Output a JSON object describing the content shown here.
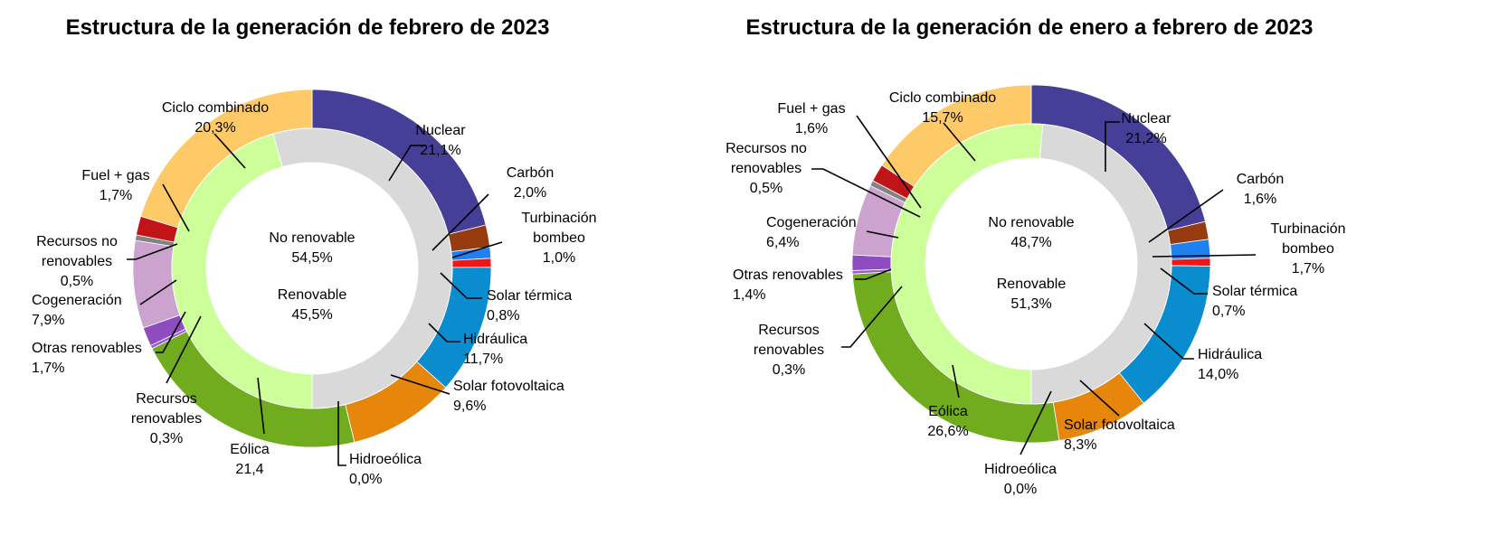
{
  "colors": {
    "nuclear": "#463F98",
    "carbon": "#963A0F",
    "turbinacion": "#1F81F0",
    "solar_termica": "#F01616",
    "hidraulica": "#0A8DCF",
    "solar_fotovoltaica": "#E6870B",
    "hidroeolica": "#5B8A1E",
    "eolica": "#70AC1D",
    "recursos_renovables": "#9C5CC9",
    "otras_renovables": "#8E4CC0",
    "cogeneracion": "#CCA2CE",
    "recursos_no_renovables": "#828282",
    "fuel_gas": "#C11419",
    "ciclo_combinado": "#FECA67",
    "no_renovable": "#D9D9D9",
    "renovable": "#CCFF99"
  },
  "chart_data": [
    {
      "type": "pie",
      "subtype": "donut",
      "title": "Estructura de la generación de febrero de 2023",
      "outer_series": [
        {
          "key": "nuclear",
          "name": "Nuclear",
          "value": 21.1,
          "label": "21,1%"
        },
        {
          "key": "carbon",
          "name": "Carbón",
          "value": 2.0,
          "label": "2,0%"
        },
        {
          "key": "turbinacion",
          "name": "Turbinación bombeo",
          "value": 1.0,
          "label": "1,0%"
        },
        {
          "key": "solar_termica",
          "name": "Solar térmica",
          "value": 0.8,
          "label": "0,8%"
        },
        {
          "key": "hidraulica",
          "name": "Hidráulica",
          "value": 11.7,
          "label": "11,7%"
        },
        {
          "key": "solar_fotovoltaica",
          "name": "Solar fotovoltaica",
          "value": 9.6,
          "label": "9,6%"
        },
        {
          "key": "hidroeolica",
          "name": "Hidroeólica",
          "value": 0.0,
          "label": "0,0%"
        },
        {
          "key": "eolica",
          "name": "Eólica",
          "value": 21.4,
          "label": "21,4"
        },
        {
          "key": "recursos_renovables",
          "name": "Recursos renovables",
          "value": 0.3,
          "label": "0,3%"
        },
        {
          "key": "otras_renovables",
          "name": "Otras renovables",
          "value": 1.7,
          "label": "1,7%"
        },
        {
          "key": "cogeneracion",
          "name": "Cogeneración",
          "value": 7.9,
          "label": "7,9%"
        },
        {
          "key": "recursos_no_renovables",
          "name": "Recursos no renovables",
          "value": 0.5,
          "label": "0,5%"
        },
        {
          "key": "fuel_gas",
          "name": "Fuel + gas",
          "value": 1.7,
          "label": "1,7%"
        },
        {
          "key": "ciclo_combinado",
          "name": "Ciclo combinado",
          "value": 20.3,
          "label": "20,3%"
        }
      ],
      "inner_series": [
        {
          "key": "renovable",
          "name": "Renovable",
          "value": 45.5,
          "label": "45,5%"
        },
        {
          "key": "no_renovable",
          "name": "No renovable",
          "value": 54.5,
          "label": "54,5%"
        }
      ]
    },
    {
      "type": "pie",
      "subtype": "donut",
      "title": "Estructura de la generación de enero a febrero de 2023",
      "outer_series": [
        {
          "key": "nuclear",
          "name": "Nuclear",
          "value": 21.2,
          "label": "21,2%"
        },
        {
          "key": "carbon",
          "name": "Carbón",
          "value": 1.6,
          "label": "1,6%"
        },
        {
          "key": "turbinacion",
          "name": "Turbinación bombeo",
          "value": 1.7,
          "label": "1,7%"
        },
        {
          "key": "solar_termica",
          "name": "Solar térmica",
          "value": 0.7,
          "label": "0,7%"
        },
        {
          "key": "hidraulica",
          "name": "Hidráulica",
          "value": 14.0,
          "label": "14,0%"
        },
        {
          "key": "solar_fotovoltaica",
          "name": "Solar fotovoltaica",
          "value": 8.3,
          "label": "8,3%"
        },
        {
          "key": "hidroeolica",
          "name": "Hidroeólica",
          "value": 0.0,
          "label": "0,0%"
        },
        {
          "key": "eolica",
          "name": "Eólica",
          "value": 26.6,
          "label": "26,6%"
        },
        {
          "key": "recursos_renovables",
          "name": "Recursos renovables",
          "value": 0.3,
          "label": "0,3%"
        },
        {
          "key": "otras_renovables",
          "name": "Otras renovables",
          "value": 1.4,
          "label": "1,4%"
        },
        {
          "key": "cogeneracion",
          "name": "Cogeneración",
          "value": 6.4,
          "label": "6,4%"
        },
        {
          "key": "recursos_no_renovables",
          "name": "Recursos no renovables",
          "value": 0.5,
          "label": "0,5%"
        },
        {
          "key": "fuel_gas",
          "name": "Fuel + gas",
          "value": 1.6,
          "label": "1,6%"
        },
        {
          "key": "ciclo_combinado",
          "name": "Ciclo combinado",
          "value": 15.7,
          "label": "15,7%"
        }
      ],
      "inner_series": [
        {
          "key": "renovable",
          "name": "Renovable",
          "value": 51.3,
          "label": "51,3%"
        },
        {
          "key": "no_renovable",
          "name": "No renovable",
          "value": 48.7,
          "label": "48,7%"
        }
      ]
    }
  ]
}
